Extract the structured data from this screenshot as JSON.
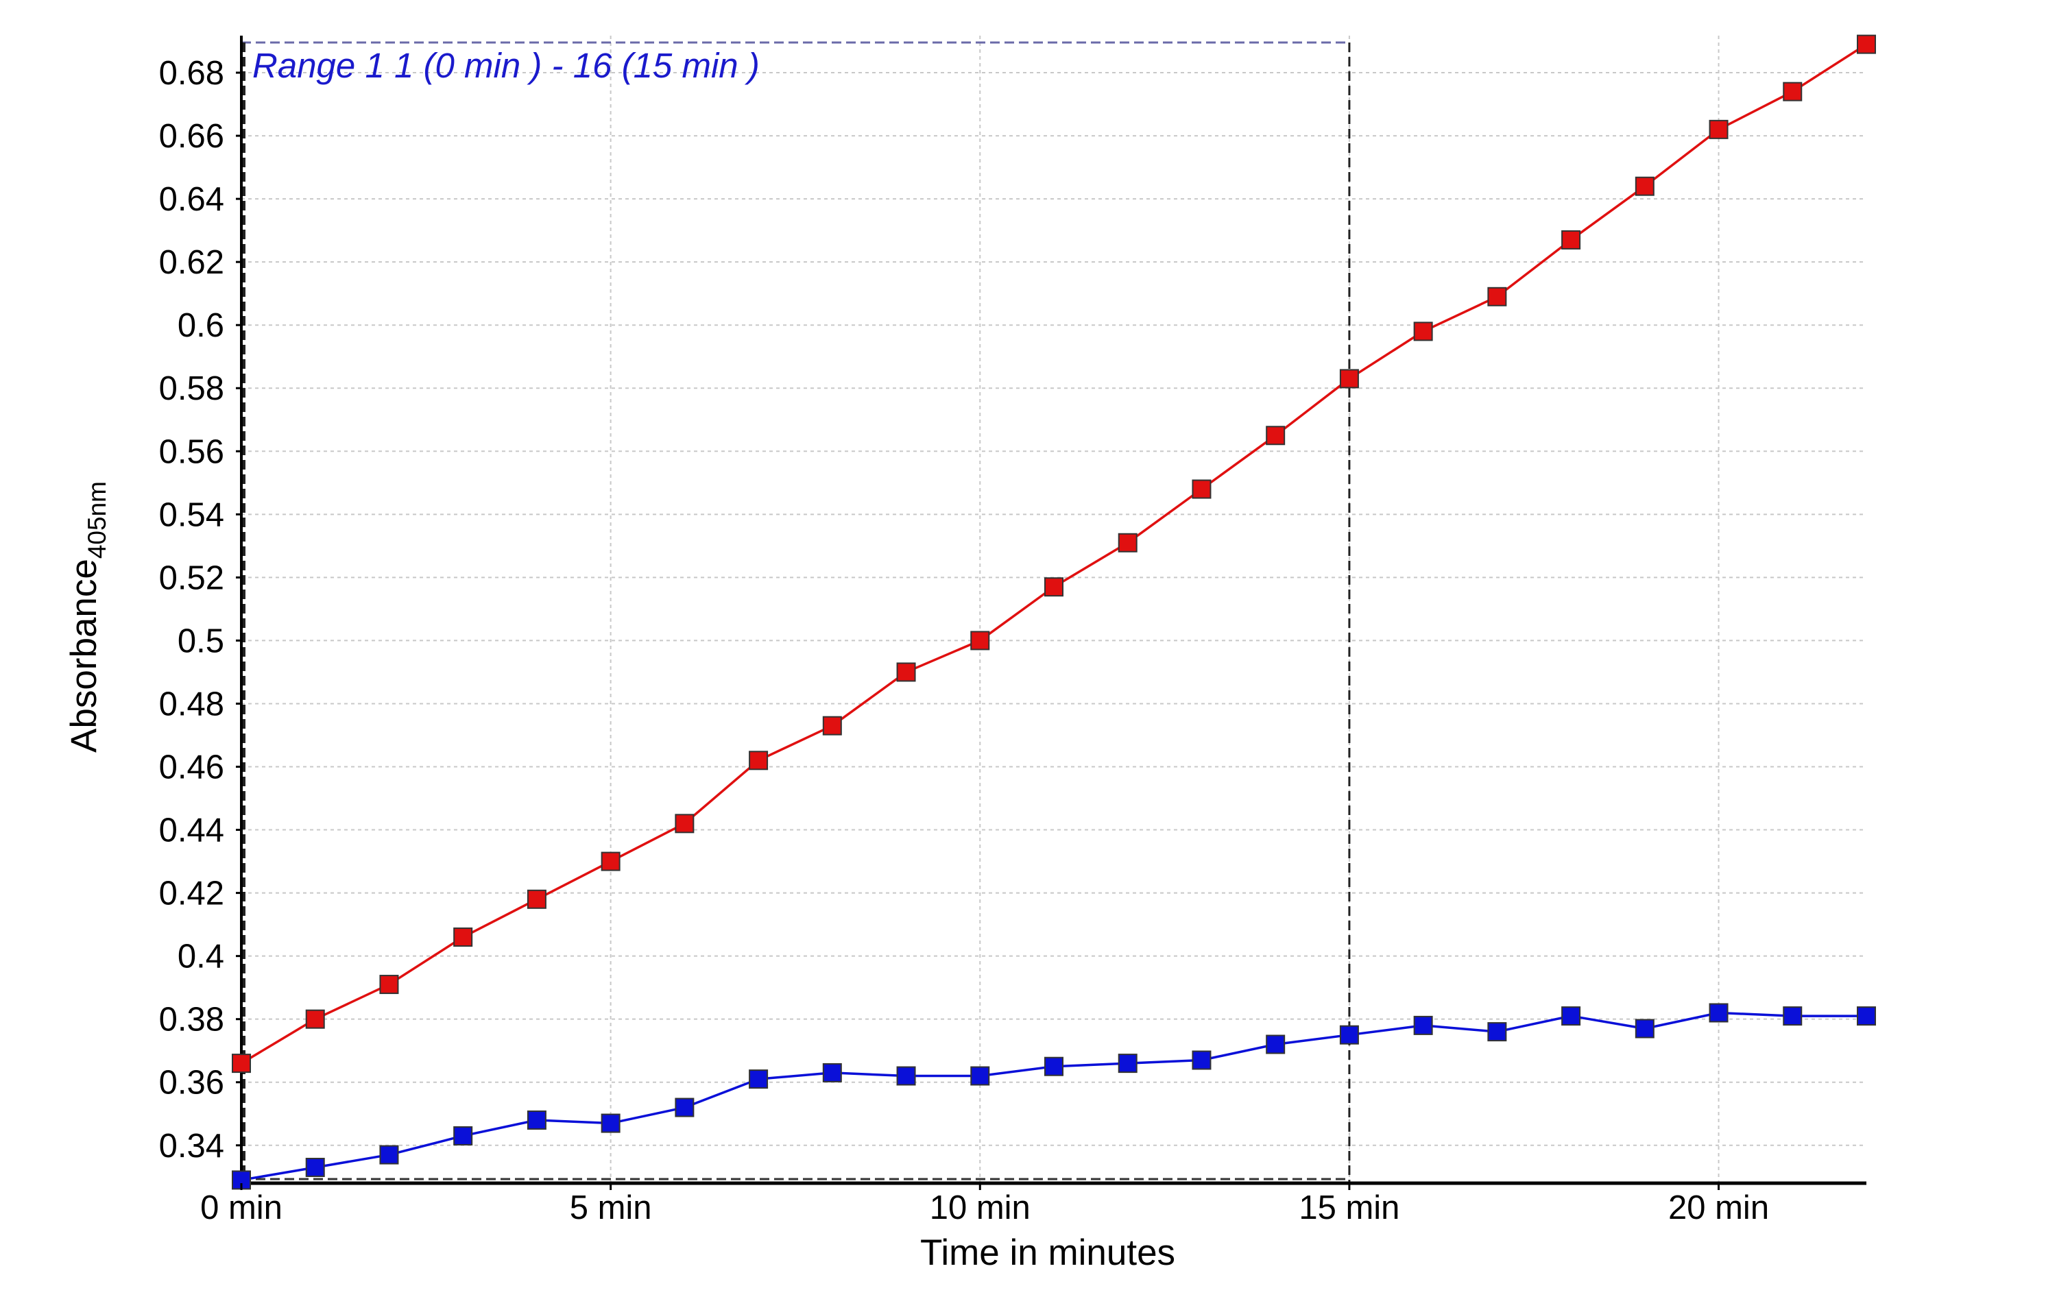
{
  "chart_data": {
    "type": "line",
    "title": "",
    "xlabel": "Time in minutes",
    "ylabel_main": "Absorbance",
    "ylabel_sub": "405nm",
    "xlim": [
      0,
      22
    ],
    "ylim": [
      0.328,
      0.69
    ],
    "grid": true,
    "x_ticks": [
      0,
      5,
      10,
      15,
      20
    ],
    "x_tick_labels": [
      "0 min",
      "5 min",
      "10 min",
      "15 min",
      "20 min"
    ],
    "y_ticks": [
      0.34,
      0.36,
      0.38,
      0.4,
      0.42,
      0.44,
      0.46,
      0.48,
      0.5,
      0.52,
      0.54,
      0.56,
      0.58,
      0.6,
      0.62,
      0.64,
      0.66,
      0.68
    ],
    "y_tick_labels": [
      "0.34",
      "0.36",
      "0.38",
      "0.4",
      "0.42",
      "0.44",
      "0.46",
      "0.48",
      "0.5",
      "0.52",
      "0.54",
      "0.56",
      "0.58",
      "0.6",
      "0.62",
      "0.64",
      "0.66",
      "0.68"
    ],
    "x": [
      0,
      1,
      2,
      3,
      4,
      5,
      6,
      7,
      8,
      9,
      10,
      11,
      12,
      13,
      14,
      15,
      16,
      17,
      18,
      19,
      20,
      21,
      22
    ],
    "series": [
      {
        "color": "#e01010",
        "values": [
          0.366,
          0.38,
          0.391,
          0.406,
          0.418,
          0.43,
          0.442,
          0.462,
          0.473,
          0.49,
          0.5,
          0.517,
          0.531,
          0.548,
          0.565,
          0.583,
          0.598,
          0.609,
          0.627,
          0.644,
          0.662,
          0.674,
          0.689
        ]
      },
      {
        "color": "#0a10d8",
        "values": [
          0.329,
          0.333,
          0.337,
          0.343,
          0.348,
          0.347,
          0.352,
          0.361,
          0.363,
          0.362,
          0.362,
          0.365,
          0.366,
          0.367,
          0.372,
          0.375,
          0.378,
          0.376,
          0.381,
          0.377,
          0.382,
          0.381,
          0.381
        ]
      }
    ],
    "range_selection": {
      "label": "Range 1 1 (0 min  ) - 16 (15 min   )",
      "x_start": 0,
      "x_end": 15,
      "color": "#1a1acc"
    }
  }
}
